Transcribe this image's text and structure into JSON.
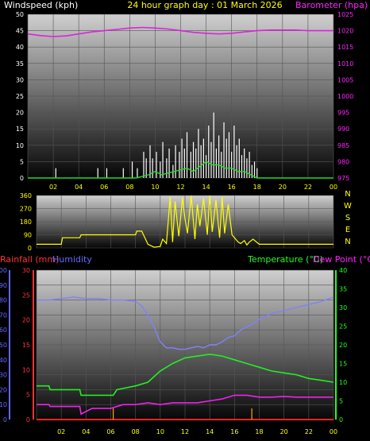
{
  "colors": {
    "wind_axis": "#ffffff",
    "baro_axis": "#ff22ff",
    "title": "#ffff00",
    "baro_line": "#dd22dd",
    "wind_speed": "#ffffff",
    "wind_avg": "#22dd22",
    "dir_line": "#ffff00",
    "rain_axis": "#ff3333",
    "humidity_axis": "#6666ff",
    "temp_axis": "#22ff22",
    "dew_axis": "#ff22ff",
    "humidity_line": "#8080ff",
    "temp_line": "#22ee22",
    "dew_line": "#ee22ee",
    "rain_line": "#ff2222",
    "tick_mark": "#ffaa00",
    "hour_label": "#ffff00"
  },
  "chart_data": [
    {
      "id": "wind_baro",
      "type": "line",
      "title": "24 hour graph day : 01 March 2026",
      "left_axis": {
        "label": "Windspeed (kph)",
        "min": 0,
        "max": 50,
        "ticks": [
          "0",
          "5",
          "10",
          "15",
          "20",
          "25",
          "30",
          "35",
          "40",
          "45",
          "50"
        ]
      },
      "right_axis": {
        "label": "Barometer (hpa)",
        "min": 975,
        "max": 1025,
        "ticks": [
          "975",
          "980",
          "985",
          "990",
          "995",
          "1000",
          "1005",
          "1010",
          "1015",
          "1020",
          "1025"
        ]
      },
      "x_ticks": [
        "02",
        "04",
        "06",
        "08",
        "10",
        "12",
        "14",
        "16",
        "18",
        "20",
        "22",
        "00"
      ],
      "x_range_hours": [
        0,
        24
      ],
      "grid": true,
      "series": [
        {
          "key": "barometer",
          "axis": "right",
          "x": [
            0,
            1,
            2,
            3,
            4,
            5,
            6,
            7,
            8,
            9,
            10,
            11,
            12,
            13,
            14,
            15,
            16,
            17,
            18,
            19,
            20,
            21,
            22,
            23,
            24
          ],
          "values": [
            1019,
            1018.5,
            1018.2,
            1018.4,
            1019,
            1019.6,
            1020,
            1020.4,
            1020.8,
            1021,
            1020.8,
            1020.5,
            1020,
            1019.5,
            1019.2,
            1019,
            1019.2,
            1019.6,
            1020,
            1020.2,
            1020.2,
            1020.2,
            1020,
            1020,
            1020
          ]
        },
        {
          "key": "wind_avg",
          "axis": "left",
          "x": [
            0,
            8.5,
            9,
            9.5,
            10,
            10.5,
            11,
            11.5,
            12,
            12.5,
            13,
            13.5,
            14,
            14.5,
            15,
            15.5,
            16,
            16.5,
            17,
            17.5,
            18,
            24
          ],
          "values": [
            0,
            0,
            0.5,
            1,
            2,
            1,
            1.5,
            2,
            2.5,
            3,
            2,
            3.5,
            5,
            4,
            4,
            3,
            3,
            2,
            2,
            1,
            0,
            0
          ]
        },
        {
          "key": "wind_gust",
          "axis": "left",
          "x": [
            2.2,
            5.5,
            6.2,
            7.5,
            8.2,
            8.6,
            9.1,
            9.3,
            9.6,
            9.8,
            10.1,
            10.4,
            10.6,
            10.9,
            11.1,
            11.4,
            11.6,
            11.9,
            12.1,
            12.3,
            12.5,
            12.8,
            13.0,
            13.2,
            13.4,
            13.6,
            13.8,
            14.0,
            14.2,
            14.4,
            14.6,
            14.8,
            15.0,
            15.2,
            15.4,
            15.6,
            15.8,
            16.0,
            16.2,
            16.4,
            16.6,
            16.8,
            17.0,
            17.2,
            17.4,
            17.6,
            17.8,
            18.0
          ],
          "values": [
            3,
            3,
            3,
            3,
            5,
            3,
            8,
            6,
            10,
            6,
            8,
            5,
            11,
            6,
            9,
            4,
            10,
            8,
            12,
            9,
            14,
            8,
            11,
            9,
            15,
            10,
            12,
            7,
            16,
            11,
            20,
            9,
            13,
            8,
            17,
            12,
            14,
            8,
            16,
            10,
            12,
            7,
            9,
            6,
            8,
            4,
            5,
            3
          ]
        }
      ]
    },
    {
      "id": "wind_dir",
      "type": "line",
      "left_axis": {
        "label": "",
        "min": 0,
        "max": 360,
        "ticks": [
          "0",
          "90",
          "180",
          "270",
          "360"
        ]
      },
      "right_axis_labels": [
        "N",
        "W",
        "S",
        "E",
        "N"
      ],
      "x_range_hours": [
        0,
        24
      ],
      "grid": true,
      "series": [
        {
          "key": "direction",
          "axis": "left",
          "x": [
            0,
            2,
            2.1,
            3.5,
            3.6,
            8,
            8.1,
            8.5,
            9,
            9.5,
            10,
            10.2,
            10.5,
            10.8,
            11,
            11.2,
            11.5,
            11.8,
            12,
            12.2,
            12.5,
            12.8,
            13,
            13.2,
            13.5,
            13.8,
            14,
            14.2,
            14.5,
            14.8,
            15,
            15.2,
            15.5,
            15.8,
            16,
            16.3,
            16.5,
            16.8,
            17,
            17.2,
            17.5,
            18,
            24
          ],
          "values": [
            25,
            25,
            70,
            70,
            90,
            90,
            115,
            115,
            25,
            5,
            10,
            60,
            30,
            350,
            40,
            320,
            80,
            345,
            200,
            100,
            360,
            60,
            300,
            150,
            340,
            90,
            360,
            110,
            330,
            70,
            350,
            100,
            300,
            90,
            70,
            40,
            30,
            50,
            20,
            40,
            60,
            25,
            25
          ]
        }
      ]
    },
    {
      "id": "temp_hum",
      "type": "line",
      "left_axis_1": {
        "label": "Rainfall (mm)",
        "min": 0,
        "max": 30,
        "ticks": [
          "0",
          "5",
          "10",
          "15",
          "20",
          "25",
          "30"
        ]
      },
      "left_axis_2": {
        "label": "Humidity",
        "min": 0,
        "max": 100,
        "ticks": [
          "0",
          "10",
          "20",
          "30",
          "40",
          "50",
          "60",
          "70",
          "80",
          "90",
          "100"
        ]
      },
      "right_axis": {
        "label": "Temperature (°C)",
        "label2": "Dew Point (°C)",
        "min": 0,
        "max": 40,
        "ticks": [
          "0",
          "5",
          "10",
          "15",
          "20",
          "25",
          "30",
          "35",
          "40"
        ]
      },
      "x_ticks": [
        "02",
        "04",
        "06",
        "08",
        "10",
        "12",
        "14",
        "16",
        "18",
        "20",
        "22",
        "00"
      ],
      "x_range_hours": [
        0,
        24
      ],
      "grid": true,
      "series": [
        {
          "key": "humidity",
          "axis": "left_2",
          "x": [
            0,
            1,
            2,
            3,
            4,
            5,
            6,
            7,
            8,
            8.5,
            9,
            9.5,
            10,
            10.5,
            11,
            11.5,
            12,
            12.5,
            13,
            13.5,
            14,
            14.5,
            15,
            15.5,
            16,
            16.5,
            17,
            17.5,
            18,
            19,
            20,
            21,
            22,
            23,
            24
          ],
          "values": [
            80,
            80,
            81,
            82,
            81,
            81,
            80,
            80,
            79,
            76,
            70,
            62,
            52,
            48,
            48,
            47,
            47,
            48,
            49,
            48,
            50,
            50,
            52,
            55,
            56,
            60,
            62,
            64,
            67,
            71,
            73,
            75,
            77,
            79,
            82
          ]
        },
        {
          "key": "temperature",
          "axis": "right",
          "x": [
            0,
            1,
            1.1,
            3.5,
            3.6,
            6.2,
            6.5,
            8,
            9,
            10,
            10.5,
            11,
            12,
            13,
            14,
            15,
            16,
            17,
            18,
            19,
            20,
            21,
            22,
            23,
            24
          ],
          "values": [
            9,
            9,
            8,
            8,
            6.5,
            6.5,
            8,
            9,
            10,
            13,
            14,
            15,
            16.5,
            17,
            17.5,
            17,
            16,
            15,
            14,
            13,
            12.5,
            12,
            11,
            10.5,
            10
          ]
        },
        {
          "key": "dew_point",
          "axis": "right",
          "x": [
            0,
            1,
            1.1,
            3.5,
            3.6,
            4.5,
            6,
            7,
            8,
            9,
            10,
            11,
            12,
            13,
            14,
            15,
            16,
            17,
            18,
            19,
            20,
            21,
            22,
            23,
            24
          ],
          "values": [
            4,
            4,
            3.5,
            3.5,
            1.5,
            3,
            3,
            4,
            4,
            4.5,
            4,
            4.5,
            4.5,
            4.5,
            5,
            5.5,
            6.5,
            6.5,
            6,
            6,
            6.2,
            6,
            6,
            6,
            6
          ]
        },
        {
          "key": "rainfall",
          "axis": "left_1",
          "x": [
            0,
            24
          ],
          "values": [
            0,
            0
          ]
        }
      ],
      "tick_marks_hours": [
        6.2,
        17.4
      ]
    }
  ]
}
